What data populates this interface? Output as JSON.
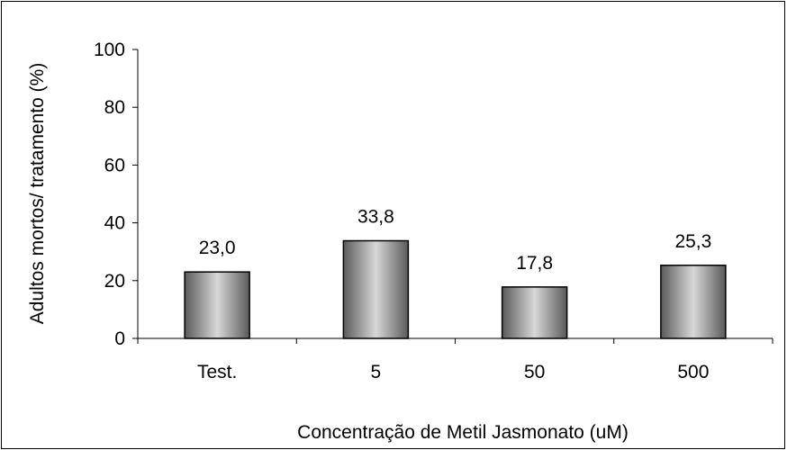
{
  "chart_data": {
    "type": "bar",
    "categories": [
      "Test.",
      "5",
      "50",
      "500"
    ],
    "values": [
      23.0,
      33.8,
      17.8,
      25.3
    ],
    "value_labels": [
      "23,0",
      "33,8",
      "17,8",
      "25,3"
    ],
    "xlabel": "Concentração de Metil Jasmonato (uM)",
    "ylabel": "Adultos mortos/ tratamento (%)",
    "ylim": [
      0,
      100
    ],
    "yticks": [
      0,
      20,
      40,
      60,
      80,
      100
    ],
    "grid": false,
    "legend": "none",
    "bar_gradient": [
      "#5a5a5a",
      "#d8d8d8",
      "#5a5a5a"
    ]
  }
}
